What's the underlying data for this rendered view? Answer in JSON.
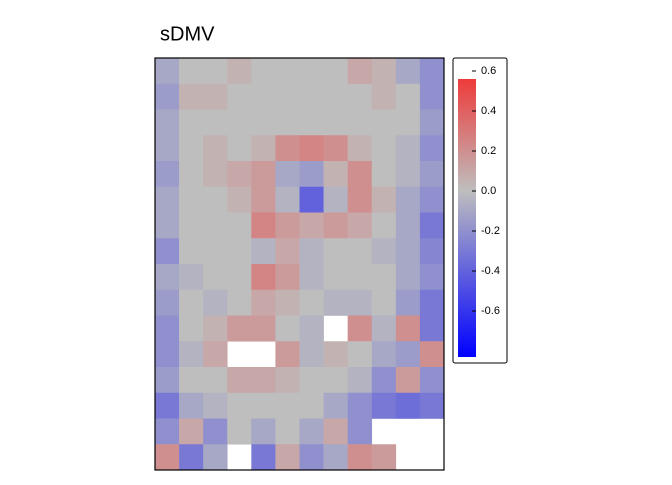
{
  "chart_data": {
    "type": "heatmap",
    "title": "sDMV",
    "z": [
      [
        -0.1,
        0,
        0,
        0.05,
        0,
        0,
        0,
        0,
        0.1,
        0.05,
        -0.1,
        -0.2
      ],
      [
        -0.15,
        0.05,
        0.05,
        0,
        0,
        0,
        0,
        0,
        0,
        0.05,
        0,
        -0.2
      ],
      [
        -0.1,
        0,
        0,
        0,
        0,
        0,
        0,
        0,
        0,
        0,
        0,
        -0.15
      ],
      [
        -0.1,
        0,
        0.05,
        0,
        0.05,
        0.2,
        0.25,
        0.2,
        0.05,
        0,
        -0.05,
        -0.2
      ],
      [
        -0.15,
        0,
        0.05,
        0.1,
        0.15,
        -0.1,
        -0.15,
        0.05,
        0.2,
        0,
        -0.05,
        -0.15
      ],
      [
        -0.1,
        0,
        0,
        0.05,
        0.15,
        -0.05,
        -0.4,
        -0.05,
        0.2,
        0.05,
        -0.1,
        -0.2
      ],
      [
        -0.1,
        0,
        0,
        0,
        0.25,
        0.15,
        0.1,
        0.15,
        0.1,
        0,
        -0.1,
        -0.3
      ],
      [
        -0.2,
        0,
        0,
        0,
        -0.05,
        0.1,
        -0.05,
        0,
        0,
        -0.05,
        -0.1,
        -0.25
      ],
      [
        -0.1,
        -0.05,
        0,
        0,
        0.25,
        0.15,
        -0.05,
        0,
        0,
        0,
        -0.1,
        -0.2
      ],
      [
        -0.15,
        0,
        -0.05,
        0,
        0.1,
        0.05,
        0,
        -0.05,
        -0.05,
        0,
        -0.15,
        -0.3
      ],
      [
        -0.2,
        0,
        0.05,
        0.15,
        0.15,
        0,
        -0.05,
        null,
        0.2,
        -0.05,
        0.2,
        -0.3
      ],
      [
        -0.2,
        -0.05,
        0.1,
        null,
        null,
        0.15,
        -0.05,
        0.05,
        0,
        -0.1,
        -0.15,
        0.2
      ],
      [
        -0.15,
        0,
        0,
        0.1,
        0.1,
        0.05,
        0,
        0,
        -0.05,
        -0.2,
        0.15,
        -0.2
      ],
      [
        -0.3,
        -0.1,
        -0.05,
        0,
        0,
        0,
        0,
        -0.1,
        -0.2,
        -0.3,
        -0.35,
        -0.3
      ],
      [
        -0.2,
        0.1,
        -0.2,
        0,
        -0.1,
        0,
        -0.1,
        0.1,
        -0.2,
        null,
        null,
        null
      ],
      [
        0.2,
        -0.3,
        -0.1,
        null,
        -0.3,
        0.1,
        -0.2,
        -0.1,
        0.2,
        0.15,
        null,
        null
      ]
    ],
    "clim": [
      -0.83,
      0.56
    ],
    "colorbar_ticks": [
      0.6,
      0.4,
      0.2,
      {
        "value": 0,
        "label": "0.0"
      },
      -0.2,
      -0.4,
      -0.6
    ],
    "colormap": {
      "low": "#0000ff",
      "mid": "#bebebe",
      "high": "#ee3b3b",
      "midpoint": 0
    }
  }
}
